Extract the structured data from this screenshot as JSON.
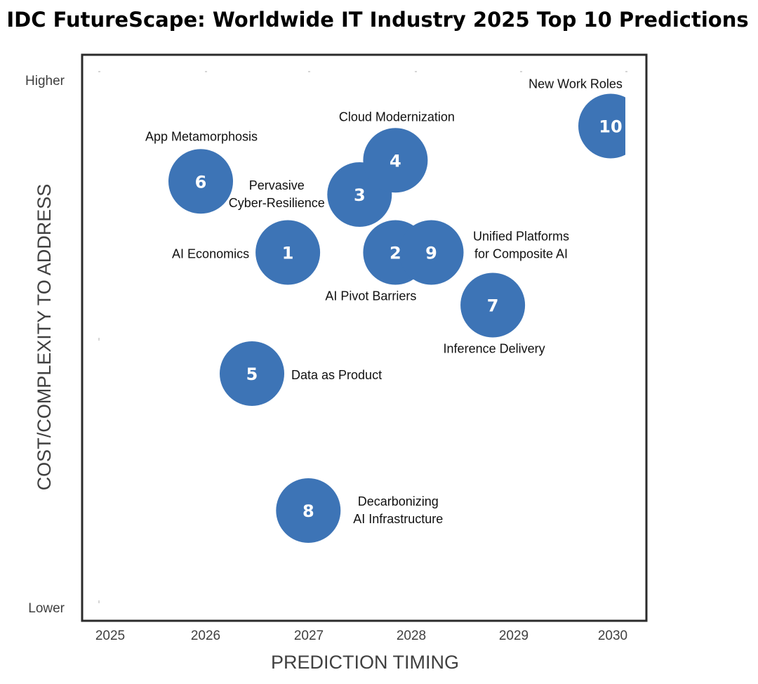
{
  "chart_data": {
    "type": "scatter",
    "title": "IDC FutureScape: Worldwide IT Industry 2025 Top 10 Predictions",
    "xlabel": "PREDICTION TIMING",
    "ylabel": "COST/COMPLEXITY TO ADDRESS",
    "x_ticks": [
      "2025",
      "2026",
      "2027",
      "2028",
      "2029",
      "2030"
    ],
    "y_ticks": [
      "Higher",
      "Lower"
    ],
    "xlim": [
      2025,
      2030
    ],
    "ylim": [
      0,
      100
    ],
    "bubble_color": "#3d74b6",
    "frame_color": "#2b2b2b",
    "points": [
      {
        "id": "1",
        "name": "AI Economics",
        "x": 2026.85,
        "y": 67
      },
      {
        "id": "2",
        "name": "AI Pivot Barriers",
        "x": 2027.9,
        "y": 67
      },
      {
        "id": "3",
        "name": "Pervasive Cyber-Resilience",
        "x": 2027.55,
        "y": 78
      },
      {
        "id": "4",
        "name": "Cloud Modernization",
        "x": 2027.9,
        "y": 84.5
      },
      {
        "id": "5",
        "name": "Data as Product",
        "x": 2026.5,
        "y": 44
      },
      {
        "id": "6",
        "name": "App Metamorphosis",
        "x": 2026.0,
        "y": 80.5
      },
      {
        "id": "7",
        "name": "Inference Delivery",
        "x": 2028.85,
        "y": 57
      },
      {
        "id": "8",
        "name": "Decarbonizing AI Infrastructure",
        "x": 2027.05,
        "y": 18
      },
      {
        "id": "9",
        "name": "Unified Platforms for Composite AI",
        "x": 2028.25,
        "y": 67
      },
      {
        "id": "10",
        "name": "New Work Roles",
        "x": 2030.0,
        "y": 91
      }
    ]
  }
}
